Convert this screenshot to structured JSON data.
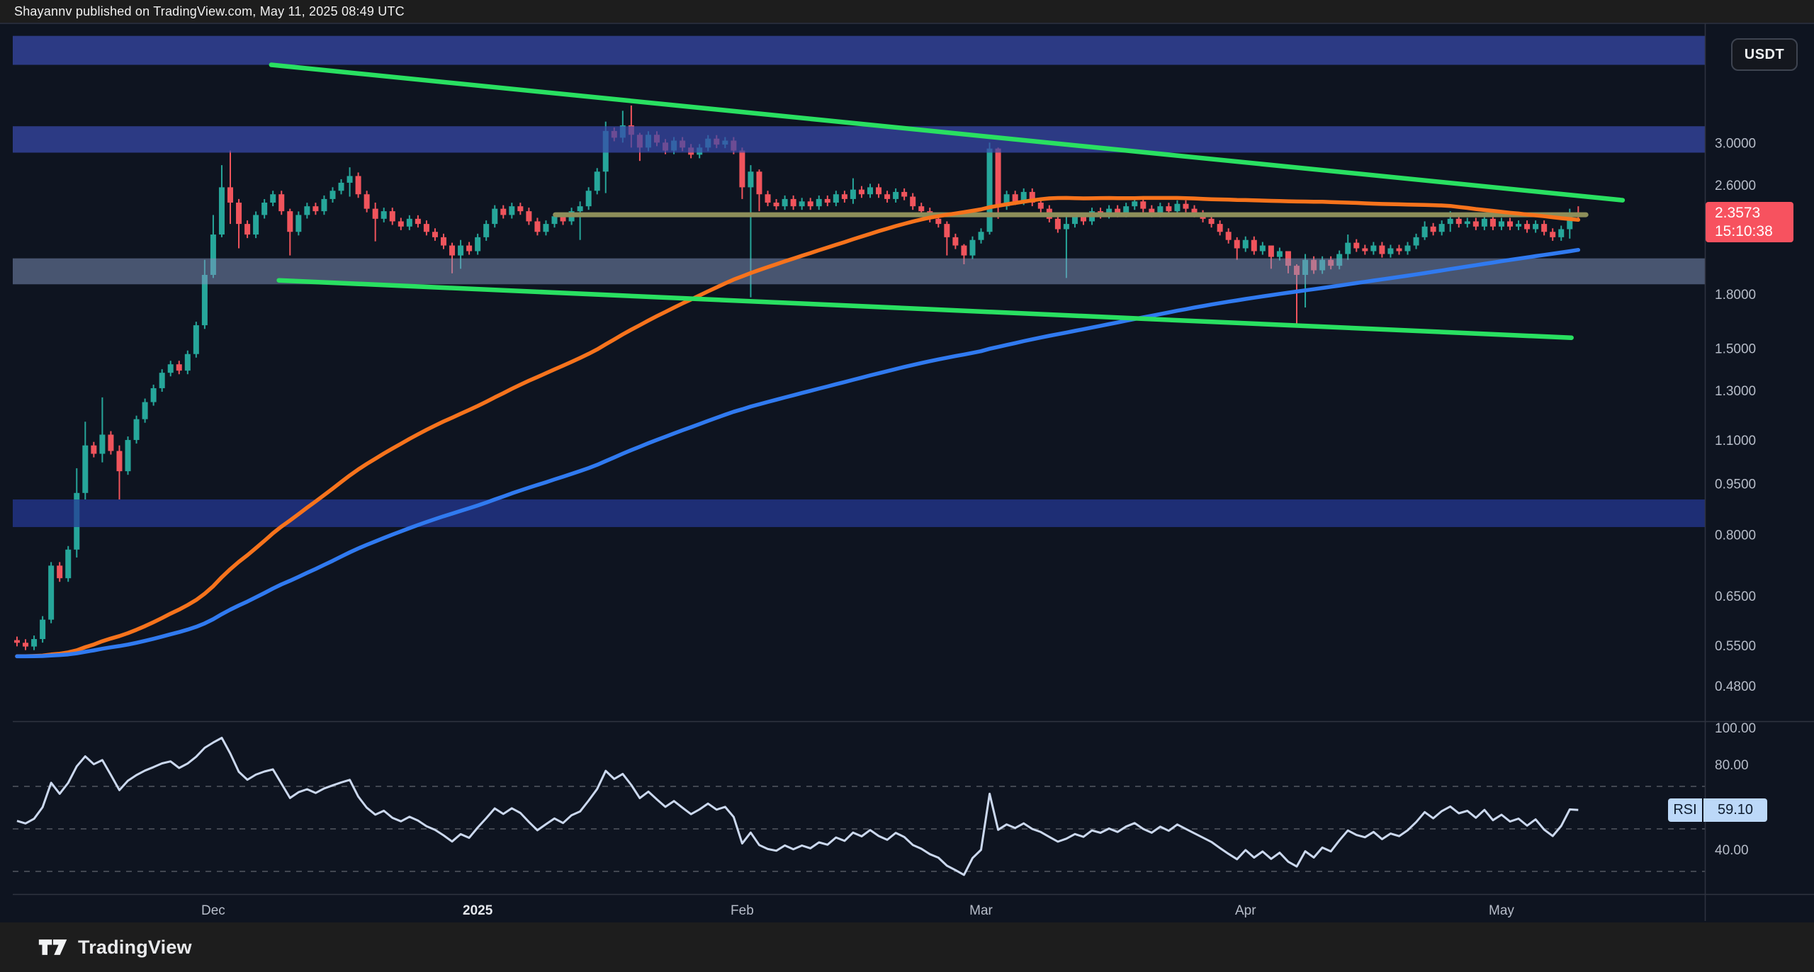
{
  "header": {
    "published_line": "Shayannv published on TradingView.com, May 11, 2025 08:49 UTC"
  },
  "footer": {
    "brand_name": "TradingView"
  },
  "top_right": {
    "symbol_button": "USDT"
  },
  "last_price_badge": {
    "price_text": "2.3573",
    "countdown": "15:10:38",
    "price": 2.3573,
    "bg_color": "#f7525f"
  },
  "rsi_badge": {
    "label": "RSI",
    "value_text": "59.10",
    "value": 59.1,
    "bg_color": "#bcd8f8"
  },
  "price_axis_labels": [
    {
      "text": "3.0000",
      "price": 3.0
    },
    {
      "text": "2.6000",
      "price": 2.6
    },
    {
      "text": "1.8000",
      "price": 1.8
    },
    {
      "text": "1.5000",
      "price": 1.5
    },
    {
      "text": "1.3000",
      "price": 1.3
    },
    {
      "text": "1.1000",
      "price": 1.1
    },
    {
      "text": "0.9500",
      "price": 0.95
    },
    {
      "text": "0.8000",
      "price": 0.8
    },
    {
      "text": "0.6500",
      "price": 0.65
    },
    {
      "text": "0.5500",
      "price": 0.55
    },
    {
      "text": "0.4800",
      "price": 0.48
    }
  ],
  "rsi_axis_labels": [
    {
      "text": "100.00",
      "value": 100
    },
    {
      "text": "80.00",
      "value": 80
    },
    {
      "text": "40.00",
      "value": 40
    }
  ],
  "time_axis_labels": [
    {
      "text": "Dec",
      "day": 23,
      "bold": false
    },
    {
      "text": "2025",
      "day": 54,
      "bold": true
    },
    {
      "text": "Feb",
      "day": 85,
      "bold": false
    },
    {
      "text": "Mar",
      "day": 113,
      "bold": false
    },
    {
      "text": "Apr",
      "day": 144,
      "bold": false
    },
    {
      "text": "May",
      "day": 174,
      "bold": false
    }
  ],
  "chart_data": {
    "type": "candlestick",
    "quote_currency": "USDT",
    "scale": "log",
    "grid": false,
    "open_start": 0.56,
    "closes": [
      0.555,
      0.548,
      0.562,
      0.6,
      0.72,
      0.69,
      0.76,
      0.92,
      1.08,
      1.05,
      1.12,
      1.06,
      0.99,
      1.1,
      1.18,
      1.25,
      1.31,
      1.38,
      1.42,
      1.39,
      1.47,
      1.62,
      1.92,
      2.2,
      2.58,
      2.45,
      2.28,
      2.2,
      2.35,
      2.45,
      2.52,
      2.38,
      2.22,
      2.35,
      2.42,
      2.38,
      2.48,
      2.55,
      2.62,
      2.68,
      2.52,
      2.4,
      2.32,
      2.38,
      2.3,
      2.26,
      2.32,
      2.28,
      2.22,
      2.18,
      2.12,
      2.05,
      2.12,
      2.08,
      2.18,
      2.28,
      2.4,
      2.35,
      2.42,
      2.38,
      2.3,
      2.22,
      2.28,
      2.34,
      2.3,
      2.38,
      2.42,
      2.55,
      2.72,
      3.12,
      3.05,
      3.18,
      3.08,
      2.95,
      3.08,
      3.0,
      2.92,
      3.02,
      2.95,
      2.88,
      2.95,
      3.04,
      2.98,
      3.02,
      2.92,
      2.58,
      2.72,
      2.52,
      2.45,
      2.42,
      2.48,
      2.42,
      2.46,
      2.42,
      2.48,
      2.45,
      2.52,
      2.48,
      2.56,
      2.52,
      2.58,
      2.52,
      2.48,
      2.54,
      2.5,
      2.42,
      2.38,
      2.32,
      2.28,
      2.18,
      2.12,
      2.05,
      2.16,
      2.22,
      2.94,
      2.42,
      2.52,
      2.46,
      2.54,
      2.45,
      2.4,
      2.32,
      2.24,
      2.28,
      2.34,
      2.3,
      2.38,
      2.35,
      2.4,
      2.36,
      2.42,
      2.46,
      2.4,
      2.36,
      2.42,
      2.38,
      2.44,
      2.4,
      2.36,
      2.32,
      2.28,
      2.22,
      2.16,
      2.1,
      2.16,
      2.08,
      2.12,
      2.04,
      2.08,
      1.98,
      1.92,
      2.02,
      1.95,
      2.02,
      1.98,
      2.06,
      2.14,
      2.1,
      2.08,
      2.12,
      2.06,
      2.1,
      2.08,
      2.12,
      2.18,
      2.26,
      2.22,
      2.28,
      2.32,
      2.28,
      2.3,
      2.26,
      2.32,
      2.26,
      2.3,
      2.26,
      2.28,
      2.24,
      2.28,
      2.22,
      2.18,
      2.24,
      2.36,
      2.3573
    ],
    "wick_overrides": {
      "7": [
        1.0,
        0.74
      ],
      "8": [
        1.17,
        0.9
      ],
      "10": [
        1.27,
        1.02
      ],
      "12": [
        1.08,
        0.9
      ],
      "22": [
        2.02,
        1.6
      ],
      "23": [
        2.35,
        1.9
      ],
      "24": [
        2.78,
        2.18
      ],
      "25": [
        2.92,
        2.28
      ],
      "26": [
        2.48,
        2.1
      ],
      "32": [
        2.4,
        2.05
      ],
      "39": [
        2.76,
        2.5
      ],
      "42": [
        2.45,
        2.15
      ],
      "51": [
        2.14,
        1.93
      ],
      "52": [
        2.16,
        1.96
      ],
      "66": [
        2.46,
        2.16
      ],
      "69": [
        3.22,
        2.53
      ],
      "71": [
        3.34,
        3.0
      ],
      "72": [
        3.4,
        2.95
      ],
      "73": [
        3.1,
        2.82
      ],
      "85": [
        2.95,
        2.48
      ],
      "86": [
        2.78,
        1.78
      ],
      "87": [
        2.74,
        2.38
      ],
      "98": [
        2.66,
        2.44
      ],
      "109": [
        2.3,
        2.05
      ],
      "111": [
        2.13,
        1.99
      ],
      "114": [
        3.0,
        2.2
      ],
      "115": [
        2.95,
        2.32
      ],
      "123": [
        2.34,
        1.9
      ],
      "143": [
        2.18,
        2.02
      ],
      "147": [
        2.1,
        1.96
      ],
      "149": [
        2.06,
        1.93
      ],
      "150": [
        1.99,
        1.61
      ],
      "151": [
        2.06,
        1.72
      ],
      "156": [
        2.2,
        2.02
      ],
      "165": [
        2.3,
        2.16
      ],
      "168": [
        2.38,
        2.22
      ],
      "182": [
        2.4,
        2.17
      ],
      "183": [
        2.42,
        2.32
      ]
    },
    "colors": {
      "up": "#26a69a",
      "down": "#f0545c",
      "ma_fast": "#f7731c",
      "ma_slow": "#307af0",
      "trendline": "#29e061",
      "hline": "#8d8e5a",
      "rsi_line": "#cbd8ee",
      "axis_text": "#b7bdc9"
    },
    "bands": [
      {
        "name": "resistance-zone-4.0",
        "price_from": 3.9,
        "price_to": 4.3,
        "color": "rgba(57,74,170,0.72)"
      },
      {
        "name": "resistance-zone-3.0",
        "price_from": 2.9,
        "price_to": 3.17,
        "color": "rgba(57,74,170,0.72)"
      },
      {
        "name": "support-zone-1.9",
        "price_from": 1.86,
        "price_to": 2.03,
        "color": "rgba(130,150,192,0.5)"
      },
      {
        "name": "support-zone-0.85",
        "price_from": 0.82,
        "price_to": 0.9,
        "color": "rgba(38,57,150,0.72)"
      }
    ],
    "trendlines": [
      {
        "name": "trendline-upper",
        "d1": 29.8,
        "p1": 3.9,
        "d2": 188.2,
        "p2": 2.47,
        "width": 6.5
      },
      {
        "name": "trendline-lower",
        "d1": 30.7,
        "p1": 1.885,
        "d2": 182.2,
        "p2": 1.553,
        "width": 6.5
      }
    ],
    "hline": {
      "name": "level-2.35",
      "price": 2.352,
      "d1": 63.1,
      "d2": 183.9,
      "width": 7
    },
    "moving_averages": [
      {
        "name": "ma-100",
        "period": 100
      },
      {
        "name": "ma-200",
        "period": 200
      }
    ],
    "rsi": {
      "period": 14,
      "current": 59.1,
      "levels": [
        70,
        50,
        30
      ],
      "axis_labels": [
        100,
        80,
        40
      ]
    }
  }
}
